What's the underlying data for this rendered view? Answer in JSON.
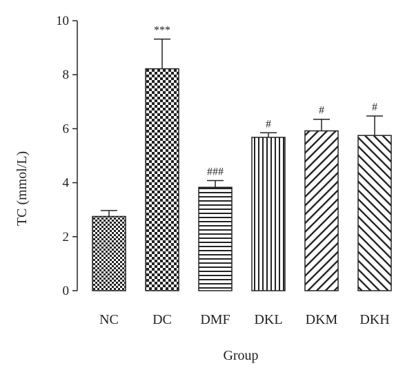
{
  "chart_data": {
    "type": "bar",
    "categories": [
      "NC",
      "DC",
      "DMF",
      "DKL",
      "DKM",
      "DKH"
    ],
    "values": [
      2.75,
      8.22,
      3.83,
      5.68,
      5.92,
      5.75
    ],
    "errors": [
      0.22,
      1.1,
      0.25,
      0.17,
      0.43,
      0.72
    ],
    "annotations": [
      "",
      "***",
      "###",
      "#",
      "#",
      "#"
    ],
    "patterns": [
      "checker-small",
      "checker-large",
      "horizontal-lines",
      "vertical-lines",
      "diagonal-forward",
      "diagonal-backward"
    ],
    "title": "",
    "xlabel": "Group",
    "ylabel": "TC (mmol/L)",
    "ylim": [
      0,
      10
    ],
    "yticks": [
      0,
      2,
      4,
      6,
      8,
      10
    ],
    "grid": false,
    "colors": {
      "bar_stroke": "#222222",
      "pattern": "#222222",
      "background": "#ffffff"
    }
  }
}
